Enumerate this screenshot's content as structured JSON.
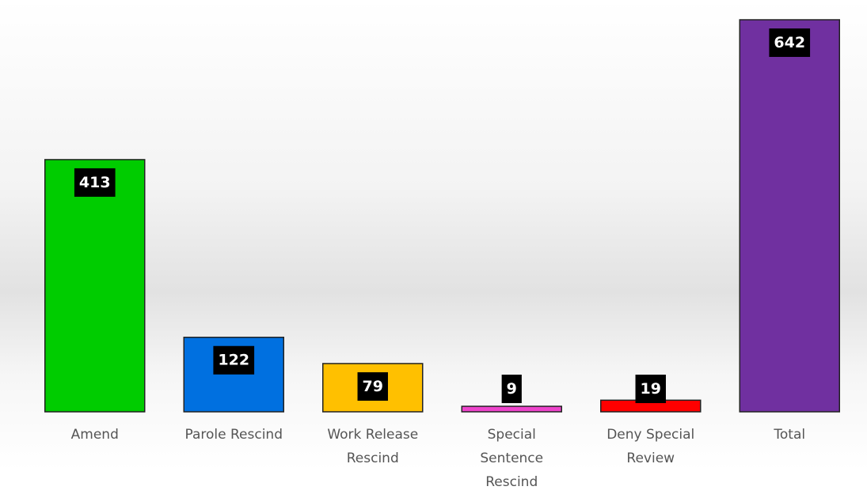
{
  "chart_data": {
    "type": "bar",
    "categories": [
      "Amend",
      "Parole Rescind",
      "Work Release Rescind",
      "Special Sentence Rescind",
      "Deny Special Review",
      "Total"
    ],
    "values": [
      413,
      122,
      79,
      9,
      19,
      642
    ],
    "colors": [
      "#00cc00",
      "#0070e0",
      "#ffc000",
      "#ee44cc",
      "#ff0000",
      "#7030a0"
    ],
    "grid": false
  }
}
